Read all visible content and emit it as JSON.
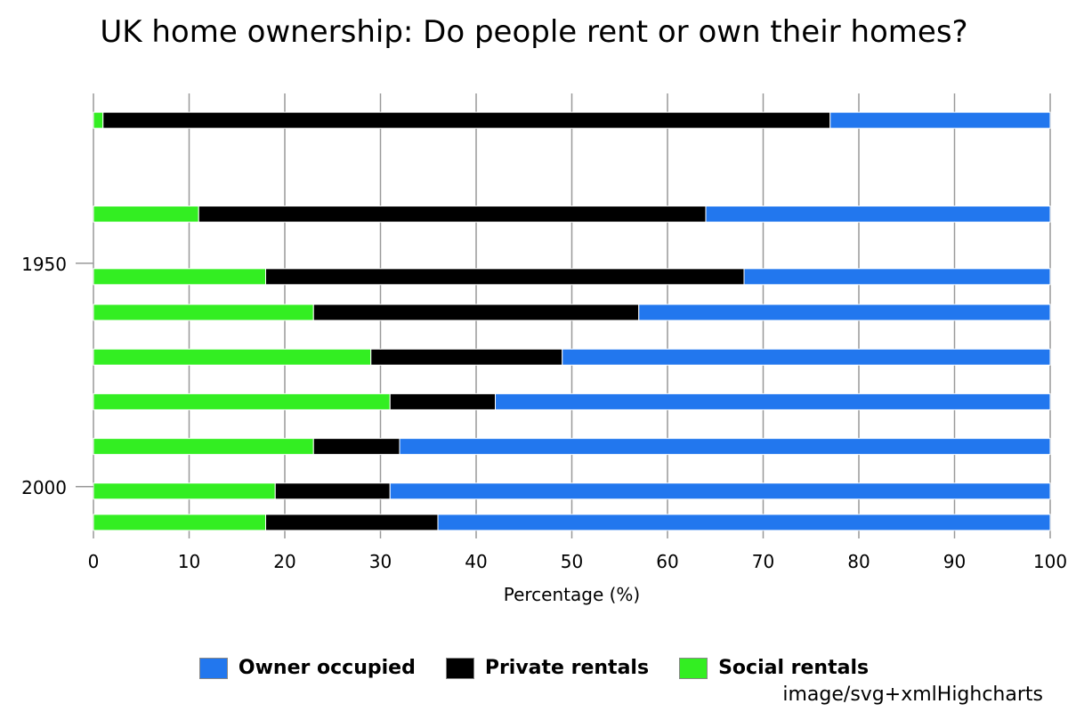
{
  "chart_data": {
    "type": "bar",
    "orientation": "horizontal",
    "stacking": "normal",
    "title": "UK home ownership: Do people rent or own their homes?",
    "xlabel": "Percentage (%)",
    "xlim": [
      0,
      100
    ],
    "x_ticks": [
      0,
      10,
      20,
      30,
      40,
      50,
      60,
      70,
      80,
      90,
      100
    ],
    "grid": true,
    "legend_position": "bottom",
    "category_axis": {
      "type": "year",
      "range": [
        1912,
        2010
      ],
      "tick_labels": [
        {
          "value": 1950,
          "label": "1950"
        },
        {
          "value": 2000,
          "label": "2000"
        }
      ]
    },
    "categories": [
      1918,
      1939,
      1953,
      1961,
      1971,
      1981,
      1991,
      2001,
      2008
    ],
    "series": [
      {
        "name": "Social rentals",
        "color": "#33ee22",
        "values": [
          1,
          11,
          18,
          23,
          29,
          31,
          23,
          19,
          18
        ]
      },
      {
        "name": "Private rentals",
        "color": "#000000",
        "values": [
          76,
          53,
          50,
          34,
          20,
          11,
          9,
          12,
          18
        ]
      },
      {
        "name": "Owner occupied",
        "color": "#2277ee",
        "values": [
          23,
          36,
          32,
          43,
          51,
          58,
          68,
          69,
          64
        ]
      }
    ],
    "legend_order": [
      "Owner occupied",
      "Private rentals",
      "Social rentals"
    ]
  },
  "legend": {
    "owner": "Owner occupied",
    "private": "Private rentals",
    "social": "Social rentals"
  },
  "credits": "image/svg+xmlHighcharts"
}
